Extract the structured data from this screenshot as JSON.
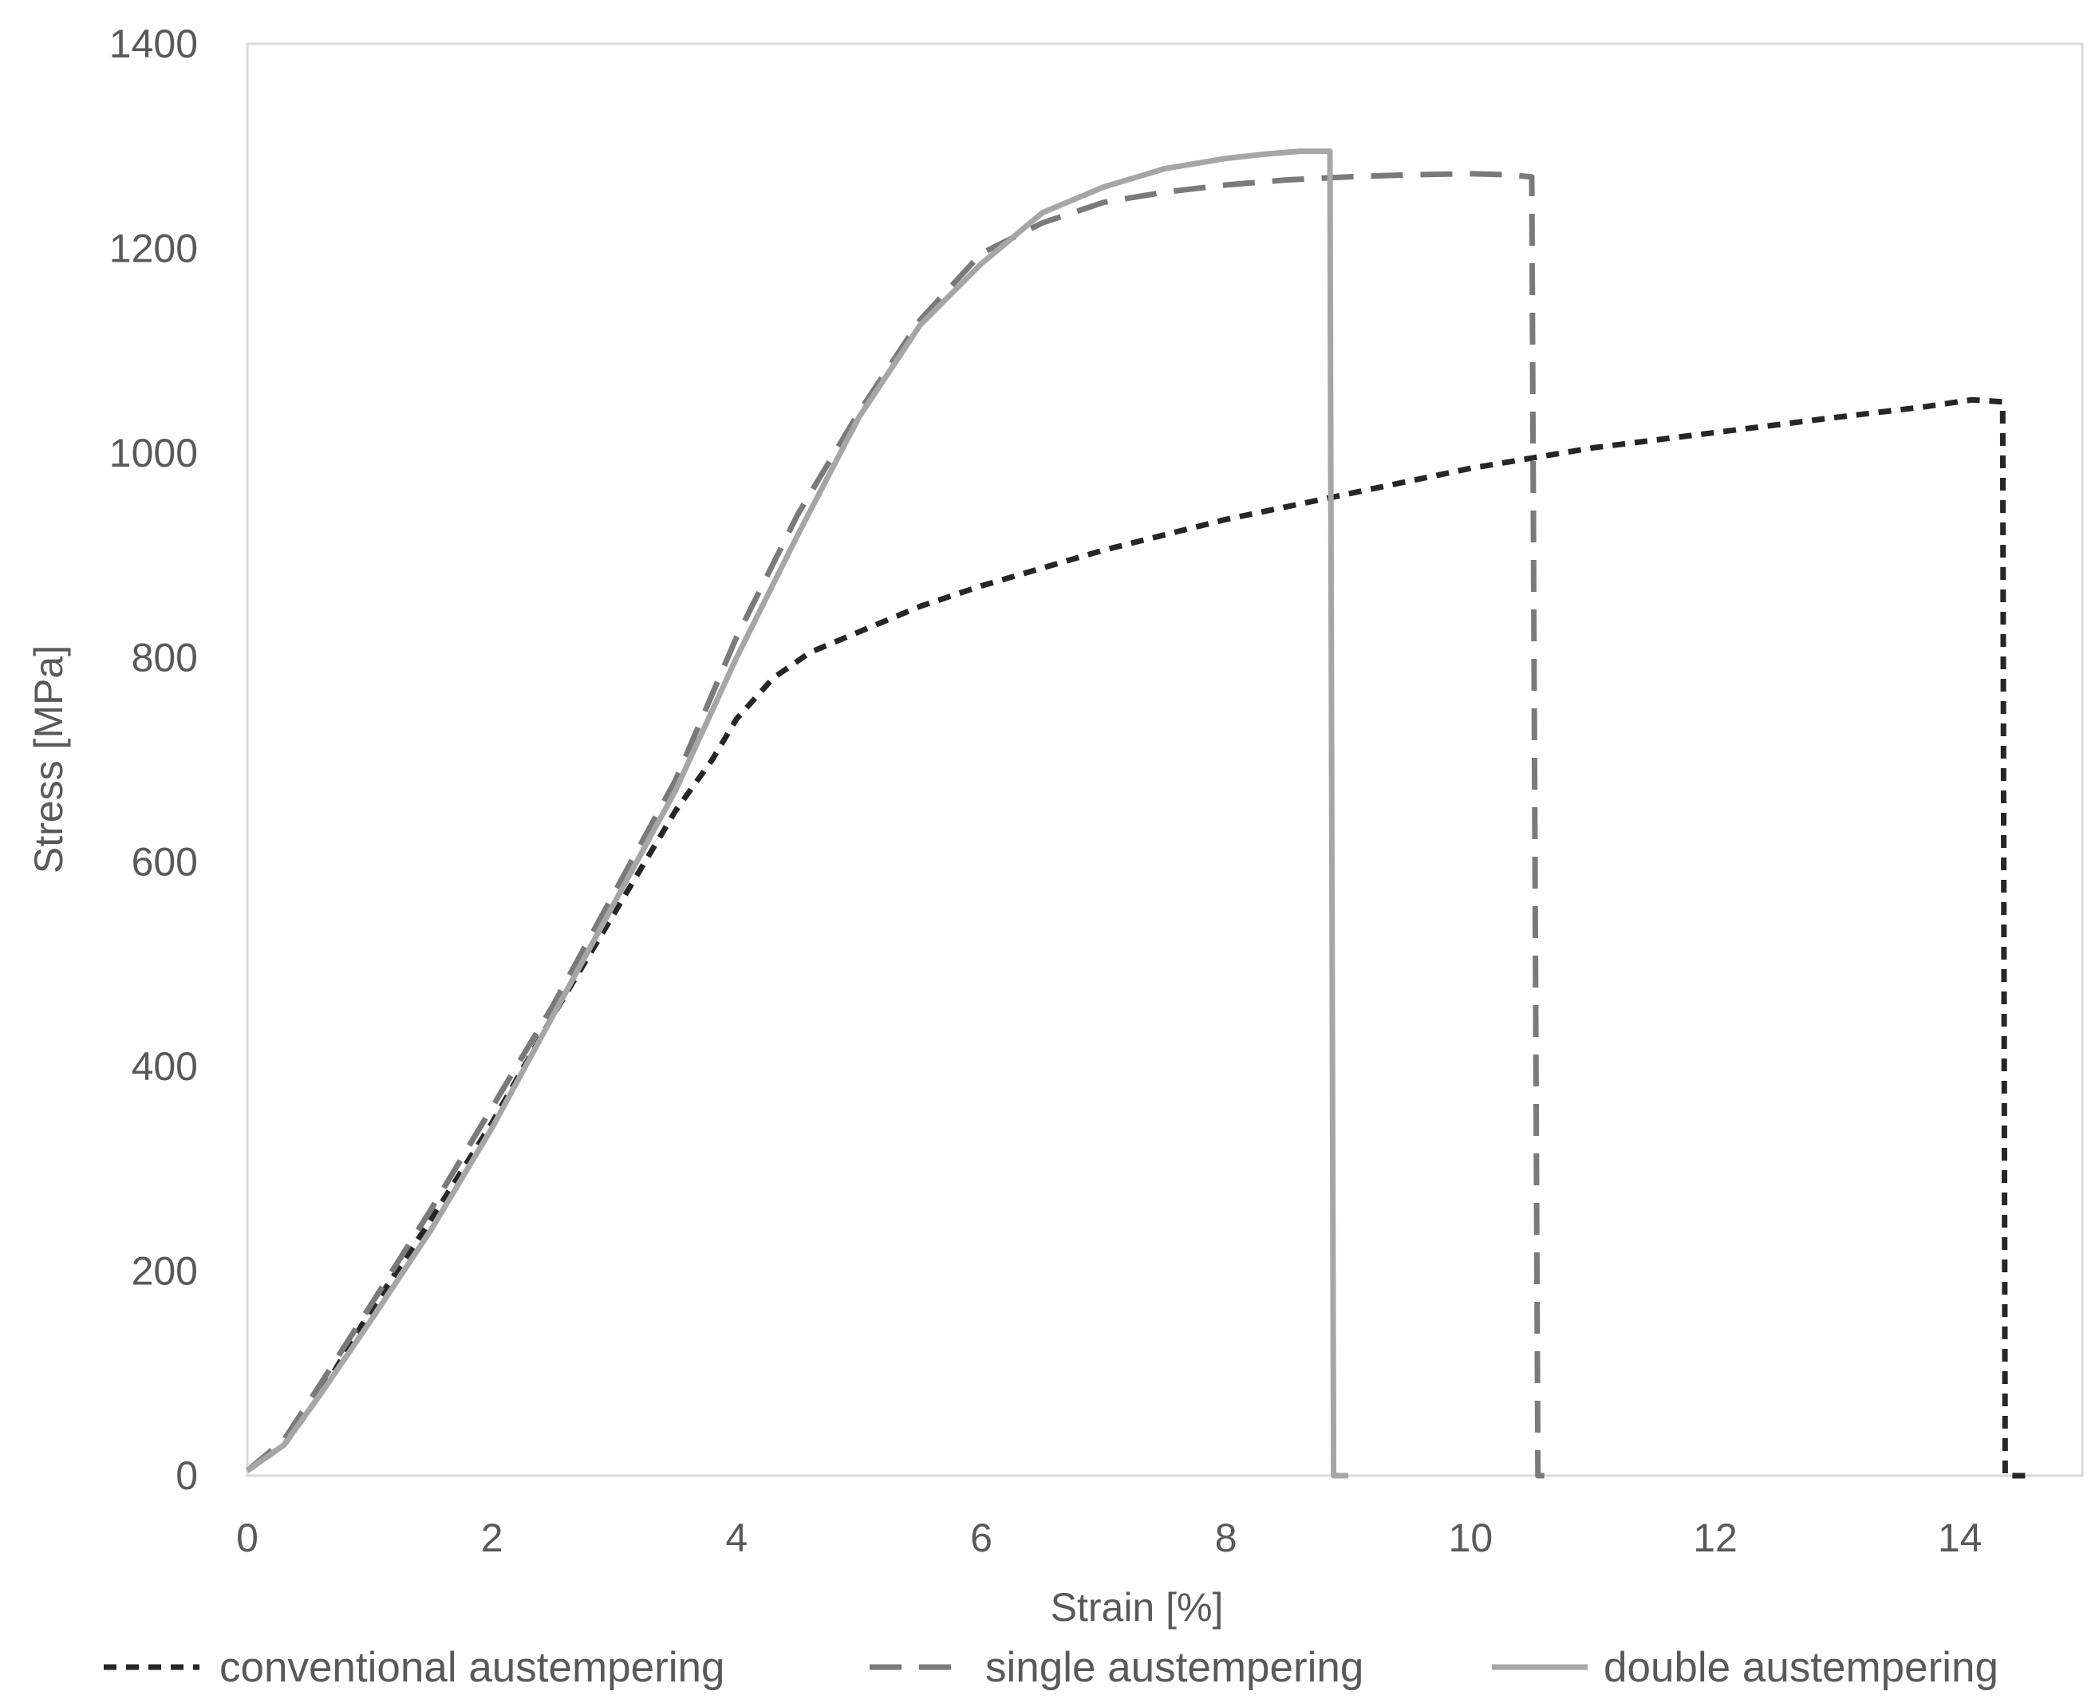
{
  "chart_data": {
    "type": "line",
    "title": "",
    "xlabel": "Strain [%]",
    "ylabel": "Stress [MPa]",
    "xlim": [
      0,
      15
    ],
    "ylim": [
      0,
      1400
    ],
    "xticks": [
      0,
      2,
      4,
      6,
      8,
      10,
      12,
      14
    ],
    "yticks": [
      0,
      200,
      400,
      600,
      800,
      1000,
      1200,
      1400
    ],
    "grid": false,
    "legend_position": "bottom",
    "series": [
      {
        "name": "conventional austempering",
        "color": "#262626",
        "line_style": "short-dash",
        "x": [
          0,
          0.3,
          0.6,
          1.0,
          1.5,
          2.0,
          2.5,
          3.0,
          3.5,
          3.8,
          4.0,
          4.3,
          4.6,
          5.0,
          5.5,
          6.0,
          7.0,
          8.0,
          9.0,
          10.0,
          11.0,
          12.0,
          13.0,
          13.7,
          14.1,
          14.35,
          14.37,
          14.6
        ],
        "y": [
          5,
          30,
          80,
          160,
          250,
          345,
          450,
          550,
          650,
          700,
          740,
          780,
          805,
          825,
          850,
          870,
          905,
          935,
          960,
          985,
          1005,
          1020,
          1035,
          1045,
          1052,
          1050,
          0,
          0
        ]
      },
      {
        "name": "single austempering",
        "color": "#7a7a7a",
        "line_style": "long-dash",
        "x": [
          0,
          0.3,
          0.6,
          1.0,
          1.5,
          2.0,
          2.5,
          3.0,
          3.5,
          4.0,
          4.5,
          5.0,
          5.5,
          6.0,
          6.5,
          7.0,
          7.5,
          8.0,
          8.5,
          9.0,
          9.5,
          10.0,
          10.3,
          10.5,
          10.55,
          10.7
        ],
        "y": [
          5,
          35,
          90,
          165,
          260,
          360,
          460,
          570,
          680,
          820,
          940,
          1040,
          1130,
          1195,
          1225,
          1245,
          1255,
          1262,
          1267,
          1270,
          1272,
          1273,
          1272,
          1270,
          0,
          0
        ]
      },
      {
        "name": "double austempering",
        "color": "#a6a6a6",
        "line_style": "solid",
        "x": [
          0,
          0.3,
          0.6,
          1.0,
          1.5,
          2.0,
          2.5,
          3.0,
          3.5,
          4.0,
          4.5,
          5.0,
          5.5,
          6.0,
          6.5,
          7.0,
          7.5,
          8.0,
          8.3,
          8.6,
          8.85,
          8.88,
          9.0
        ],
        "y": [
          5,
          30,
          80,
          150,
          240,
          340,
          450,
          560,
          670,
          800,
          920,
          1035,
          1125,
          1185,
          1235,
          1260,
          1278,
          1288,
          1292,
          1295,
          1295,
          0,
          0
        ]
      }
    ]
  }
}
